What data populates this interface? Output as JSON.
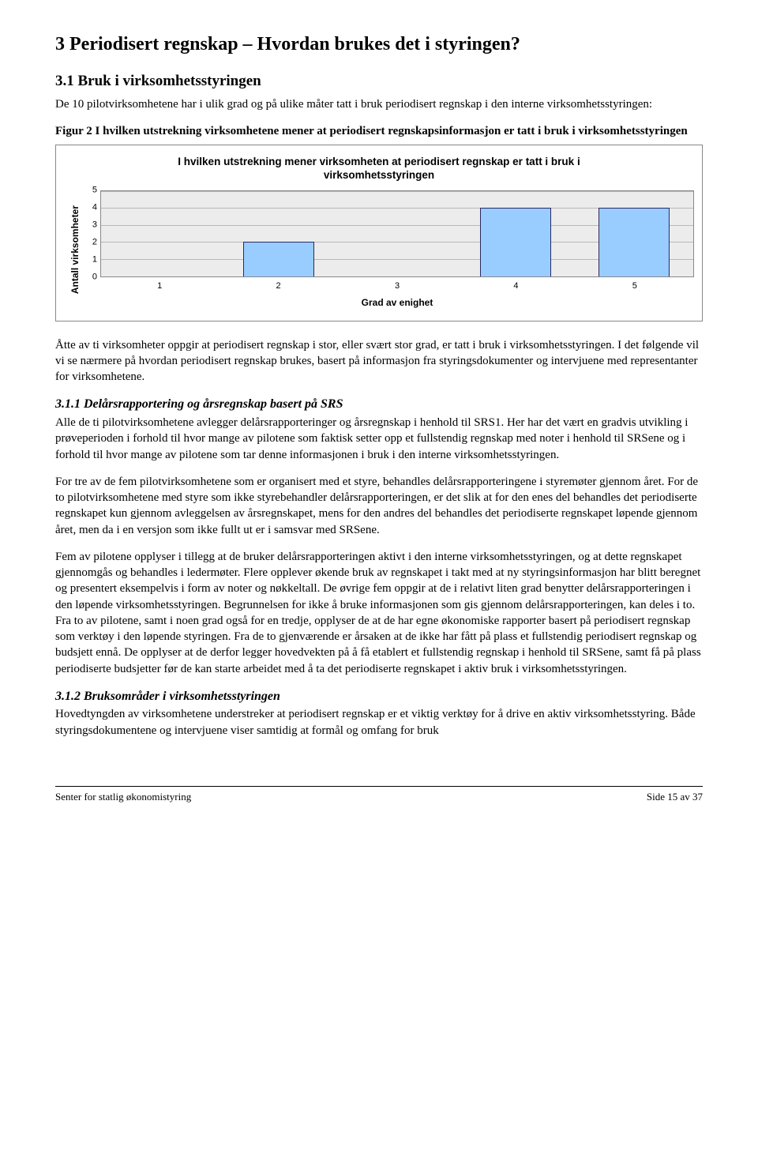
{
  "heading1": "3   Periodisert regnskap – Hvordan brukes det i styringen?",
  "heading2": "3.1   Bruk i virksomhetsstyringen",
  "intro": "De 10 pilotvirksomhetene har i ulik grad og på ulike måter tatt i bruk periodisert regnskap i den interne virksomhetsstyringen:",
  "figcaption": "Figur 2 I hvilken utstrekning virksomhetene mener at periodisert regnskapsinformasjon er tatt i bruk i virksomhetsstyringen",
  "chart": {
    "type": "bar",
    "title_line1": "I hvilken utstrekning mener virksomheten at periodisert regnskap er tatt i bruk i",
    "title_line2": "virksomhetsstyringen",
    "ylabel": "Antall virksomheter",
    "xlabel": "Grad av enighet",
    "categories": [
      "1",
      "2",
      "3",
      "4",
      "5"
    ],
    "values": [
      0,
      2,
      0,
      4,
      4
    ],
    "ymax": 5,
    "yticks": [
      "0",
      "1",
      "2",
      "3",
      "4",
      "5"
    ],
    "bar_color": "#99ccff",
    "bar_border": "#2a2a60",
    "plot_bg": "#ececec",
    "grid_color": "#b8b8b8"
  },
  "para1": "Åtte av ti virksomheter oppgir at periodisert regnskap i stor, eller svært stor grad, er tatt i bruk i virksomhetsstyringen. I det følgende vil vi se nærmere på hvordan periodisert regnskap brukes, basert på informasjon fra styringsdokumenter og intervjuene med representanter for virksomhetene.",
  "heading311": "3.1.1   Delårsrapportering og årsregnskap basert på SRS",
  "para311a": "Alle de ti pilotvirksomhetene avlegger delårsrapporteringer og årsregnskap i henhold til SRS1. Her har det vært en gradvis utvikling i prøveperioden i forhold til hvor mange av pilotene som faktisk setter opp et fullstendig regnskap med noter i henhold til SRSene og i forhold til hvor mange av pilotene som tar denne informasjonen i bruk i den interne virksomhetsstyringen.",
  "para311b": "For tre av de fem pilotvirksomhetene som er organisert med et styre, behandles delårsrapporteringene i styremøter gjennom året. For de to pilotvirksomhetene med styre som ikke styrebehandler delårsrapporteringen, er det slik at for den enes del behandles det periodiserte regnskapet kun gjennom avleggelsen av årsregnskapet, mens for den andres del behandles det periodiserte regnskapet løpende gjennom året, men da i en versjon som ikke fullt ut er i samsvar med SRSene.",
  "para311c": "Fem av pilotene opplyser i tillegg at de bruker delårsrapporteringen aktivt i den interne virksomhetsstyringen, og at dette regnskapet gjennomgås og behandles i ledermøter. Flere opplever økende bruk av regnskapet i takt med at ny styringsinformasjon har blitt beregnet og presentert eksempelvis i form av noter og nøkkeltall. De øvrige fem oppgir at de i relativt liten grad benytter delårsrapporteringen i den løpende virksomhetsstyringen. Begrunnelsen for ikke å bruke informasjonen som gis gjennom delårsrapporteringen, kan deles i to. Fra to av pilotene, samt i noen grad også for en tredje, opplyser de at de har egne økonomiske rapporter basert på periodisert regnskap som verktøy i den løpende styringen. Fra de to gjenværende er årsaken at de ikke har fått på plass et fullstendig periodisert regnskap og budsjett ennå. De opplyser at de derfor legger hovedvekten på å få etablert et fullstendig regnskap i henhold til SRSene, samt få på plass periodiserte budsjetter før de kan starte arbeidet med å ta det periodiserte regnskapet i aktiv bruk i virksomhetsstyringen.",
  "heading312": "3.1.2   Bruksområder i virksomhetsstyringen",
  "para312": "Hovedtyngden av virksomhetene understreker at periodisert regnskap er et viktig verktøy for å drive en aktiv virksomhetsstyring. Både styringsdokumentene og intervjuene viser samtidig at formål og omfang for bruk",
  "footer_left": "Senter for statlig økonomistyring",
  "footer_right": "Side 15 av 37"
}
